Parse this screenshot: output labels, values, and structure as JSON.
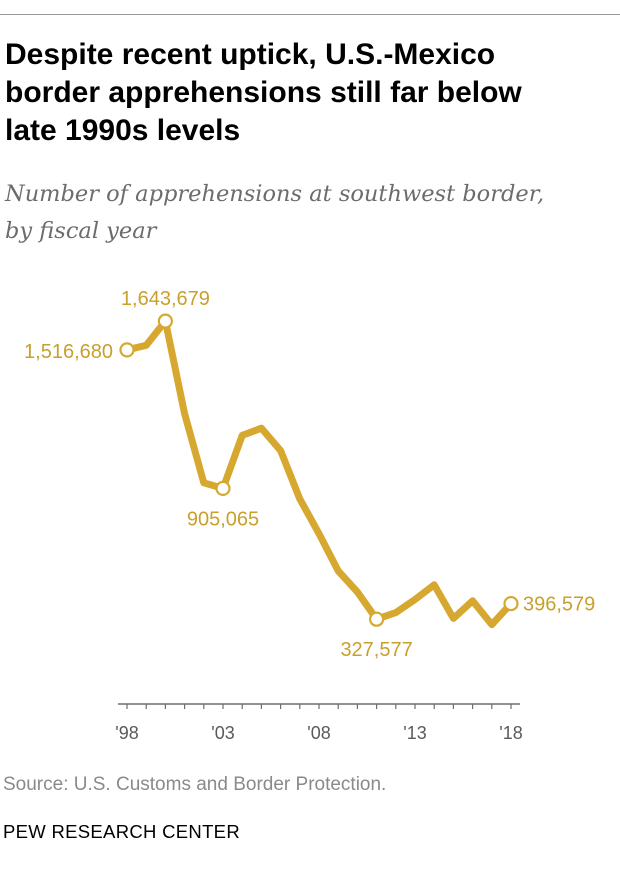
{
  "title": "Despite recent uptick, U.S.-Mexico\nborder apprehensions still far below\nlate 1990s levels",
  "subtitle": "Number of apprehensions at southwest border,\nby fiscal year",
  "source": "Source: U.S. Customs and Border Protection.",
  "brand": "PEW RESEARCH CENTER",
  "colors": {
    "line": "#d6a830",
    "label": "#c9a02c",
    "axis": "#6e6e6e",
    "marker_fill": "#ffffff"
  },
  "chart_data": {
    "type": "line",
    "title": "Despite recent uptick, U.S.-Mexico border apprehensions still far below late 1990s levels",
    "subtitle": "Number of apprehensions at southwest border, by fiscal year",
    "xlabel": "",
    "ylabel": "",
    "x": [
      1998,
      1999,
      2000,
      2001,
      2002,
      2003,
      2004,
      2005,
      2006,
      2007,
      2008,
      2009,
      2010,
      2011,
      2012,
      2013,
      2014,
      2015,
      2016,
      2017,
      2018
    ],
    "series": [
      {
        "values": [
          1516680,
          1537000,
          1643679,
          1235000,
          929800,
          905065,
          1139000,
          1171000,
          1072000,
          858600,
          705000,
          540900,
          447700,
          327577,
          356900,
          414400,
          479400,
          331300,
          408900,
          303900,
          396579
        ]
      }
    ],
    "x_ticks": [
      1998,
      2003,
      2008,
      2013,
      2018
    ],
    "x_tick_labels": [
      "'98",
      "'03",
      "'08",
      "'13",
      "'18"
    ],
    "ylim": [
      0,
      1800000
    ],
    "grid": false,
    "legend": "none",
    "annotations": [
      {
        "x": 1998,
        "text": "1,516,680",
        "position": "left"
      },
      {
        "x": 2000,
        "text": "1,643,679",
        "position": "above"
      },
      {
        "x": 2003,
        "text": "905,065",
        "position": "below"
      },
      {
        "x": 2011,
        "text": "327,577",
        "position": "below"
      },
      {
        "x": 2018,
        "text": "396,579",
        "position": "right"
      }
    ]
  }
}
